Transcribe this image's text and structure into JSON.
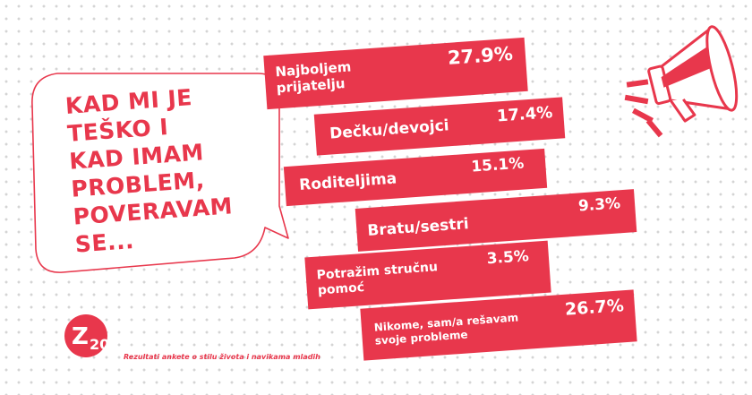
{
  "headline": "KAD MI JE\nTEŠKO I\nKAD IMAM\nPROBLEM,\nPOVERAVAM\nSE...",
  "footer": "Rezultati ankete o stilu života i navikama mladih",
  "logo_text": {
    "z": "Z",
    "num": "20"
  },
  "colors": {
    "accent": "#e8374c",
    "text_on_accent": "#ffffff"
  },
  "icons": {
    "megaphone": "megaphone-icon",
    "logo": "z20-logo-icon"
  },
  "chart_data": {
    "type": "bar",
    "categories": [
      "Najboljem\nprijatelju",
      "Dečku/devojci",
      "Roditeljima",
      "Bratu/sestri",
      "Potražim stručnu\npomoć",
      "Nikome, sam/a rešavam\nsvoje probleme"
    ],
    "values": [
      27.9,
      17.4,
      15.1,
      9.3,
      3.5,
      26.7
    ],
    "value_labels": [
      "27.9%",
      "17.4%",
      "15.1%",
      "9.3%",
      "3.5%",
      "26.7%"
    ],
    "unit": "%"
  }
}
